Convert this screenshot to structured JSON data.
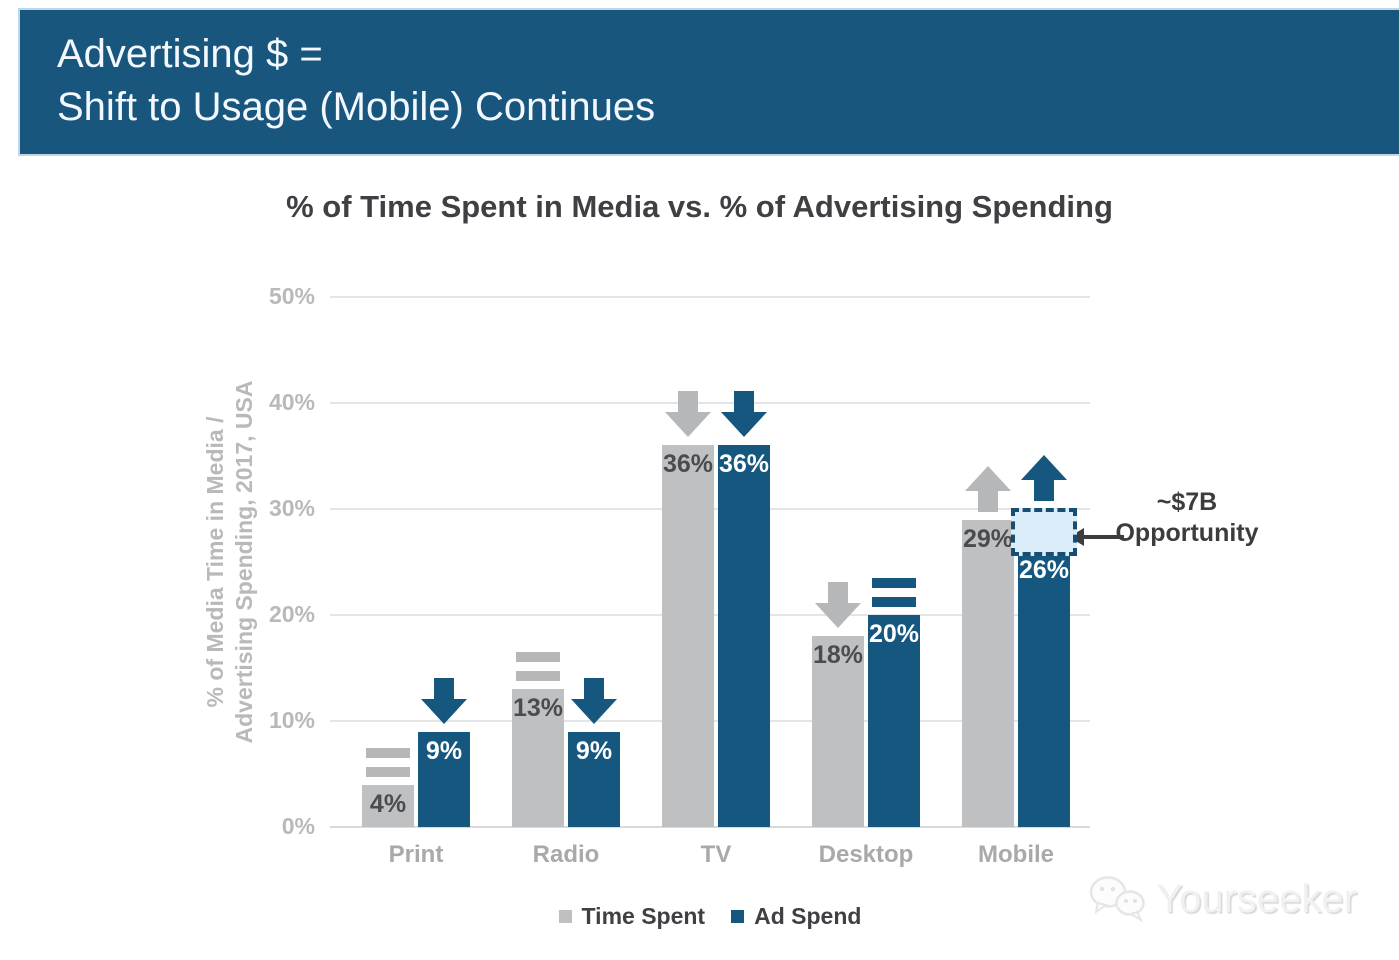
{
  "header": {
    "line1": "Advertising $ =",
    "line2": "Shift to Usage (Mobile) Continues"
  },
  "chart_data": {
    "type": "bar",
    "title": "% of Time Spent in Media vs. % of Advertising Spending",
    "ylabel_line1": "% of Media Time in Media /",
    "ylabel_line2": "Advertising Spending, 2017, USA",
    "categories": [
      "Print",
      "Radio",
      "TV",
      "Desktop",
      "Mobile"
    ],
    "series": [
      {
        "name": "Time Spent",
        "color": "#bfc0c2",
        "icon_color": "#b5b7b9",
        "values": [
          4,
          13,
          36,
          18,
          29
        ],
        "trends": [
          "equal",
          "equal",
          "down",
          "down",
          "up"
        ]
      },
      {
        "name": "Ad Spend",
        "color": "#15577e",
        "icon_color": "#15577e",
        "values": [
          9,
          9,
          36,
          20,
          26
        ],
        "trends": [
          "down",
          "down",
          "down",
          "equal",
          "up"
        ]
      }
    ],
    "yticks": [
      "50%",
      "40%",
      "30%",
      "20%",
      "10%",
      "0%"
    ],
    "ylim": [
      0,
      50
    ],
    "grid": true,
    "legend_position": "bottom",
    "annotation": {
      "line1": "~$7B",
      "line2": "Opportunity",
      "target_category": "Mobile",
      "target_category_index": 4,
      "target_series": "Ad Spend",
      "box_bottom_value": 26,
      "box_top_value": 29.8,
      "box_fill": "#dbedf8",
      "box_border": "#174e74"
    }
  },
  "legend": {
    "items": [
      {
        "label": "Time Spent",
        "color": "#bfc0c2"
      },
      {
        "label": "Ad Spend",
        "color": "#15577e"
      }
    ]
  },
  "watermark": {
    "text": "Yourseeker",
    "icon": "chat-bubbles-icon"
  },
  "colors": {
    "banner_bg": "#19567e",
    "banner_text": "#f2f8fd",
    "title_text": "#3e4043",
    "axis_text": "#b7b9bb",
    "category_text": "#a7a9ab",
    "gridline": "#e4e5e6",
    "value_on_gray": "#4a4c4f",
    "value_on_blue": "#ffffff",
    "annotation_text": "#3a3c3e"
  }
}
